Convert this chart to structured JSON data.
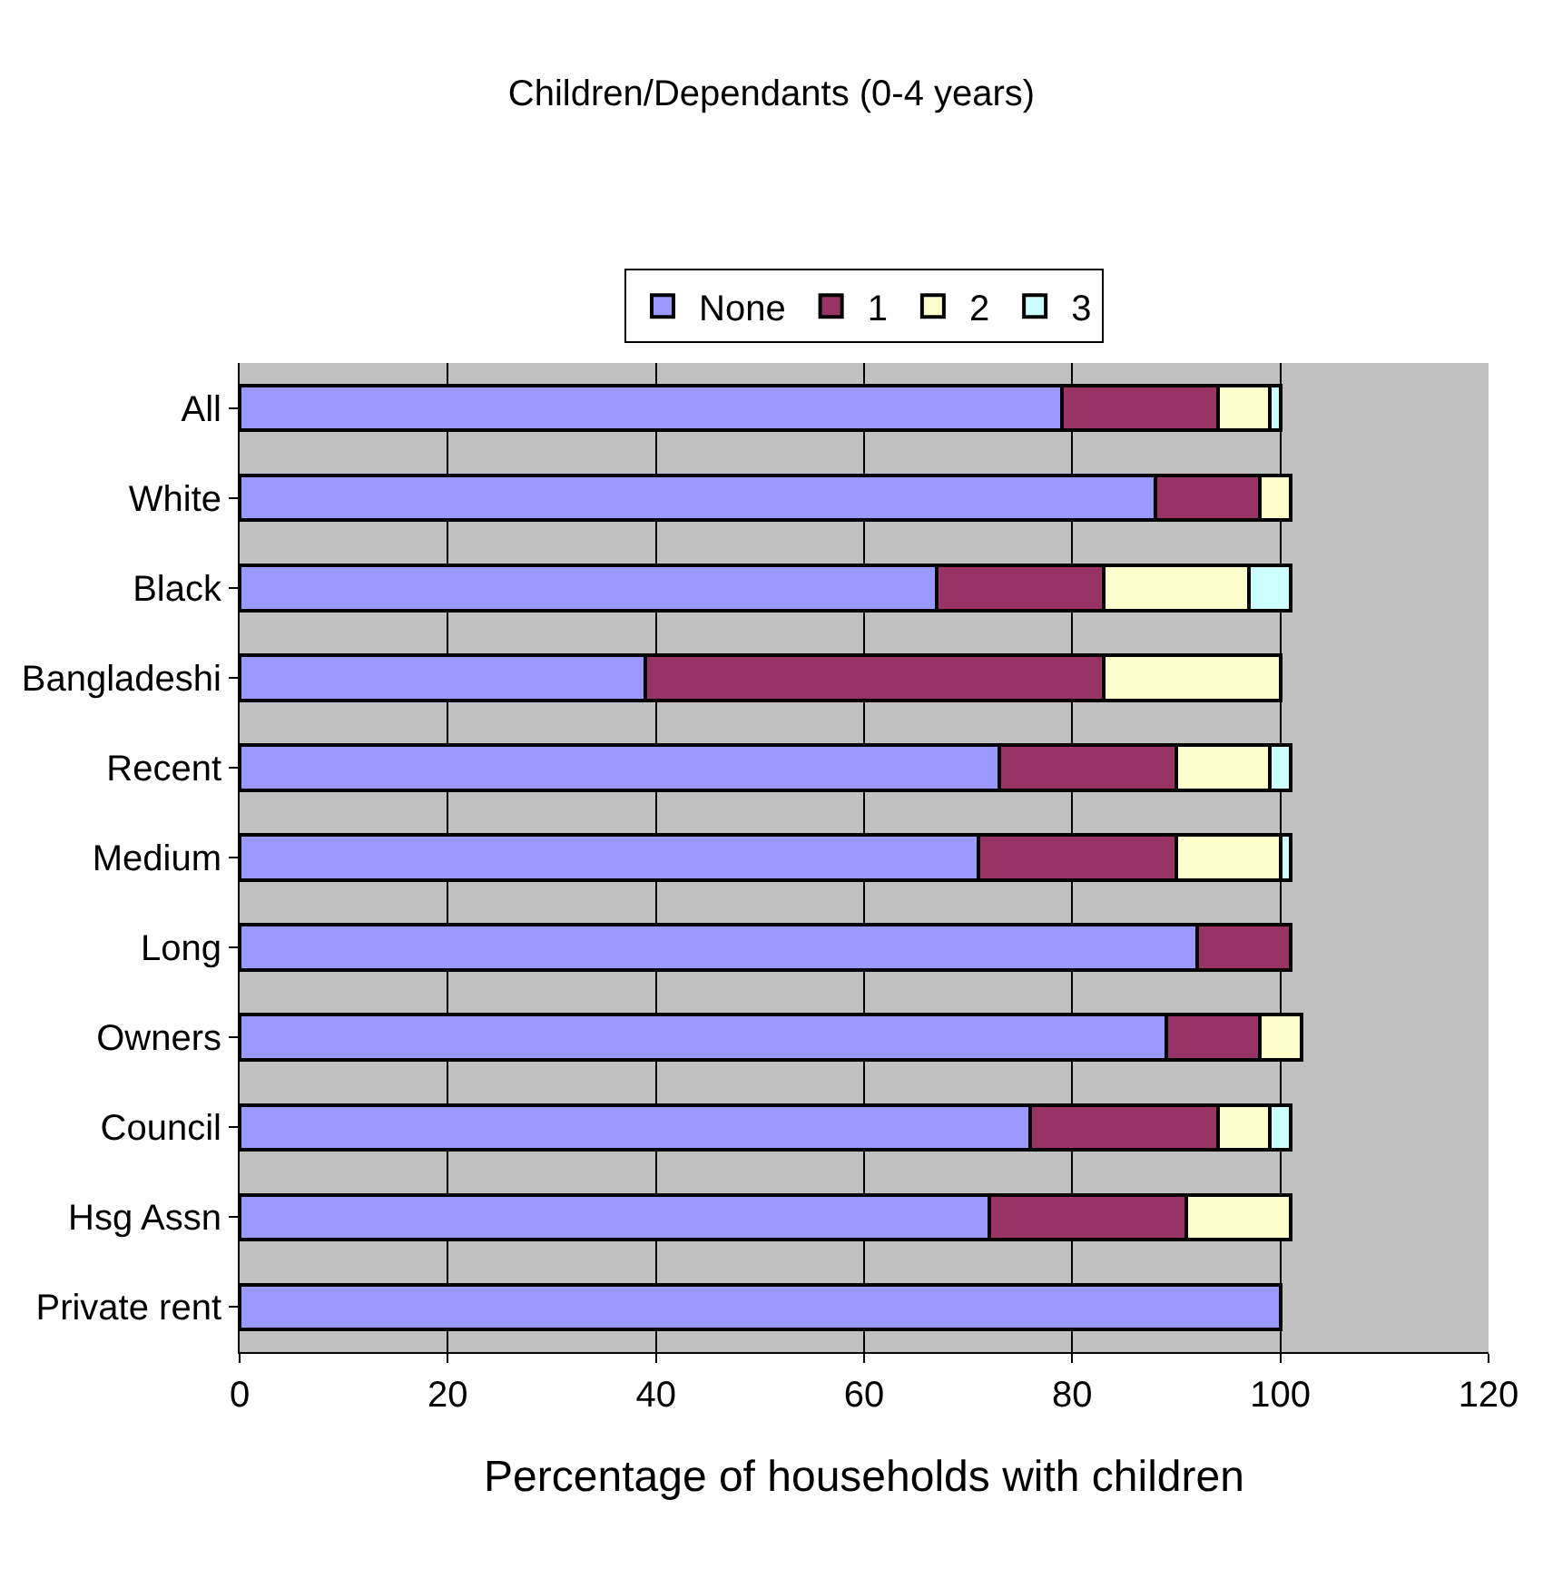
{
  "chart_data": {
    "type": "bar",
    "orientation": "horizontal",
    "stacked": true,
    "title": "Children/Dependants (0-4 years)",
    "xlabel": "Percentage of households with children",
    "categories": [
      "All",
      "White",
      "Black",
      "Bangladeshi",
      "Recent",
      "Medium",
      "Long",
      "Owners",
      "Council",
      "Hsg Assn",
      "Private rent"
    ],
    "series": [
      {
        "name": "None",
        "color": "#9999ff",
        "values": [
          79,
          88,
          67,
          39,
          73,
          71,
          92,
          89,
          76,
          72,
          100
        ]
      },
      {
        "name": "1",
        "color": "#993366",
        "values": [
          15,
          10,
          16,
          44,
          17,
          19,
          9,
          9,
          18,
          19,
          null
        ]
      },
      {
        "name": "2",
        "color": "#ffffcc",
        "values": [
          5,
          3,
          14,
          17,
          9,
          10,
          null,
          4,
          5,
          10,
          null
        ]
      },
      {
        "name": "3",
        "color": "#ccffff",
        "values": [
          1,
          null,
          4,
          null,
          2,
          1,
          null,
          null,
          2,
          null,
          null
        ]
      }
    ],
    "xlim": [
      0,
      120
    ],
    "xticks": [
      0,
      20,
      40,
      60,
      80,
      100,
      120
    ],
    "grid": "x",
    "legend": "top"
  }
}
